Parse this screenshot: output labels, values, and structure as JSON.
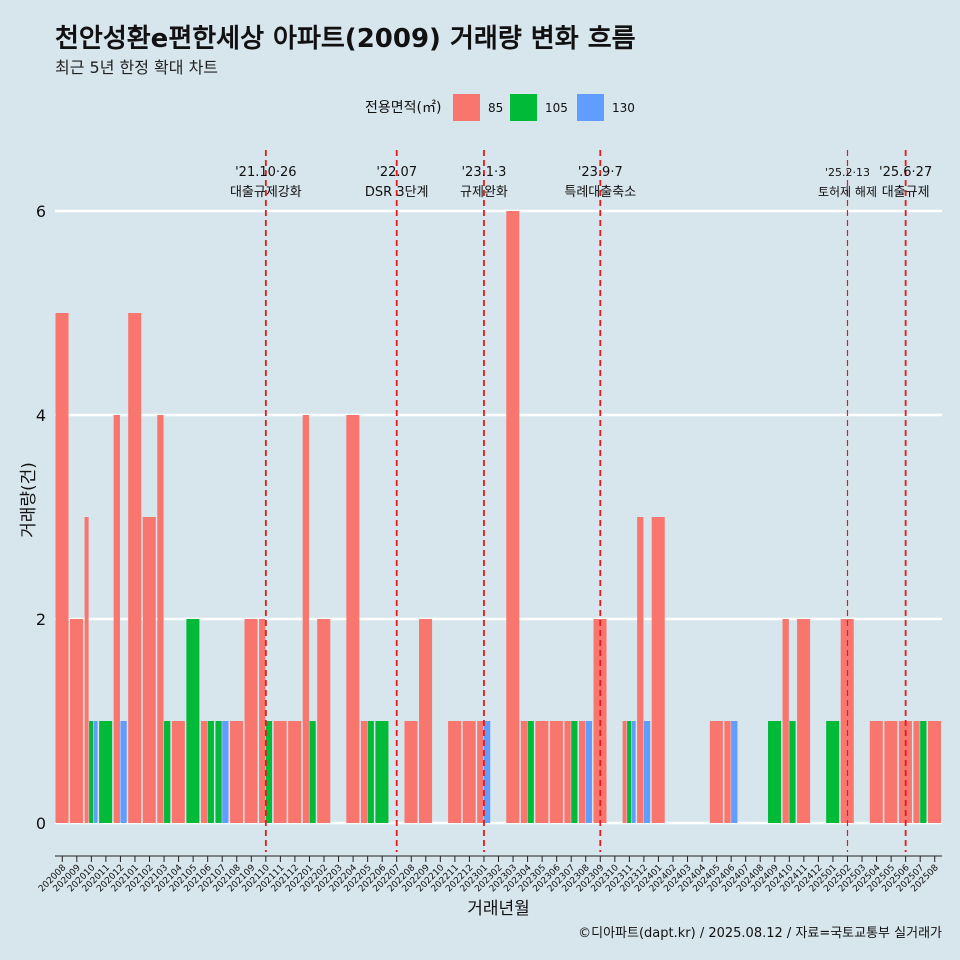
{
  "chart_data": {
    "type": "bar",
    "title": "천안성환e편한세상 아파트(2009) 거래량 변화 흐름",
    "subtitle": "최근 5년 한정 확대 차트",
    "caption": "©디아파트(dapt.kr) / 2025.08.12 / 자료=국토교통부 실거래가",
    "xlabel": "거래년월",
    "ylabel": "거래량(건)",
    "ylim": [
      0,
      6
    ],
    "yticks": [
      0,
      2,
      4,
      6
    ],
    "grid": true,
    "legend": {
      "title": "전용면적(㎡)",
      "placement": "top"
    },
    "categories": [
      "202008",
      "202009",
      "202010",
      "202011",
      "202012",
      "202101",
      "202102",
      "202103",
      "202104",
      "202105",
      "202106",
      "202107",
      "202108",
      "202109",
      "202110",
      "202111",
      "202112",
      "202201",
      "202202",
      "202203",
      "202204",
      "202205",
      "202206",
      "202207",
      "202208",
      "202209",
      "202210",
      "202211",
      "202212",
      "202301",
      "202302",
      "202303",
      "202304",
      "202305",
      "202306",
      "202307",
      "202308",
      "202309",
      "202310",
      "202311",
      "202312",
      "202401",
      "202402",
      "202403",
      "202404",
      "202405",
      "202406",
      "202407",
      "202408",
      "202409",
      "202410",
      "202411",
      "202412",
      "202501",
      "202502",
      "202503",
      "202504",
      "202505",
      "202506",
      "202507",
      "202508"
    ],
    "series": [
      {
        "name": "85",
        "color": "#f8766d",
        "values": [
          5,
          2,
          3,
          0,
          4,
          5,
          3,
          4,
          1,
          0,
          1,
          0,
          1,
          2,
          2,
          1,
          1,
          4,
          2,
          0,
          4,
          1,
          0,
          0,
          1,
          2,
          0,
          1,
          1,
          1,
          0,
          6,
          1,
          1,
          1,
          1,
          1,
          2,
          0,
          1,
          3,
          3,
          0,
          0,
          0,
          1,
          1,
          0,
          0,
          0,
          2,
          2,
          0,
          0,
          2,
          0,
          1,
          1,
          1,
          1,
          1
        ]
      },
      {
        "name": "105",
        "color": "#00ba38",
        "values": [
          0,
          0,
          1,
          1,
          0,
          0,
          0,
          1,
          0,
          2,
          1,
          1,
          0,
          0,
          1,
          0,
          0,
          1,
          0,
          0,
          0,
          1,
          1,
          0,
          0,
          0,
          0,
          0,
          0,
          0,
          0,
          0,
          1,
          0,
          0,
          1,
          0,
          0,
          0,
          1,
          0,
          0,
          0,
          0,
          0,
          0,
          0,
          0,
          0,
          1,
          1,
          0,
          0,
          1,
          0,
          0,
          0,
          0,
          0,
          1,
          0
        ]
      },
      {
        "name": "130",
        "color": "#619cff",
        "values": [
          0,
          0,
          1,
          0,
          1,
          0,
          0,
          0,
          0,
          0,
          0,
          1,
          0,
          0,
          0,
          0,
          0,
          0,
          0,
          0,
          0,
          0,
          0,
          0,
          0,
          0,
          0,
          0,
          0,
          1,
          0,
          0,
          0,
          0,
          0,
          0,
          1,
          0,
          0,
          1,
          1,
          0,
          0,
          0,
          0,
          0,
          1,
          0,
          0,
          0,
          0,
          0,
          0,
          0,
          0,
          0,
          0,
          0,
          0,
          0,
          0
        ]
      }
    ],
    "annotations": [
      {
        "x": "202110",
        "date": "'21.10·26",
        "label": "대출규제강화"
      },
      {
        "x": "202207",
        "date": "'22.07",
        "label": "DSR 3단계"
      },
      {
        "x": "202301",
        "date": "'23.1·3",
        "label": "규제완화"
      },
      {
        "x": "202309",
        "date": "'23.9·7",
        "label": "특례대출축소"
      },
      {
        "x": "202502",
        "date": "'25.2·13",
        "label": "토허제 해제"
      },
      {
        "x": "202506",
        "date": "'25.6·27",
        "label": "대출규제"
      }
    ]
  }
}
